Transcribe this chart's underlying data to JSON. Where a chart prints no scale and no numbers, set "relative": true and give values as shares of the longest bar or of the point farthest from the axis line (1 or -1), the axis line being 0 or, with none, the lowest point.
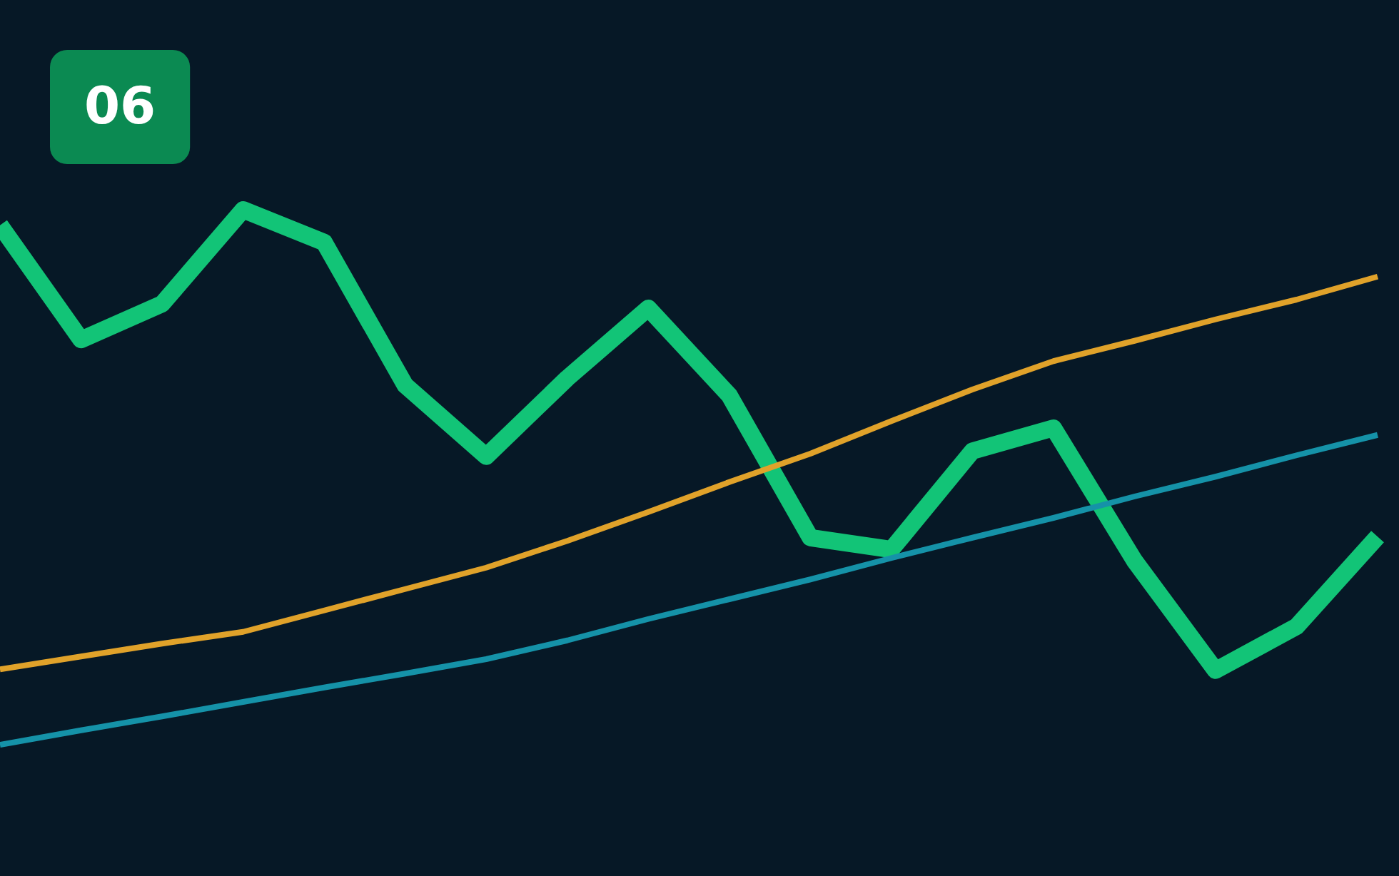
{
  "chart_data": {
    "type": "line",
    "title": "06",
    "relative": true,
    "marker": "none",
    "categories": [
      null,
      null,
      null,
      null,
      null,
      null,
      null,
      null,
      null,
      null,
      null,
      null,
      null,
      null,
      null,
      null,
      null,
      null
    ],
    "series": [
      {
        "color": "#12c477",
        "values": [
          0.971,
          0.757,
          0.824,
          1,
          0.939,
          0.672,
          0.539,
          0.685,
          0.816,
          0.653,
          0.387,
          0.365,
          0.549,
          0.592,
          0.344,
          0.139,
          0.221,
          0.389
        ]
      },
      {
        "color": "#e0a22a",
        "values": [
          0.141,
          0.165,
          0.189,
          0.211,
          0.251,
          0.291,
          0.331,
          0.381,
          0.435,
          0.491,
          0.544,
          0.605,
          0.664,
          0.717,
          0.755,
          0.795,
          0.832,
          0.875
        ]
      },
      {
        "color": "#1592a8",
        "values": [
          0,
          0.027,
          0.053,
          0.08,
          0.107,
          0.133,
          0.16,
          0.195,
          0.235,
          0.272,
          0.309,
          0.349,
          0.387,
          0.424,
          0.464,
          0.501,
          0.541,
          0.579
        ]
      }
    ]
  }
}
